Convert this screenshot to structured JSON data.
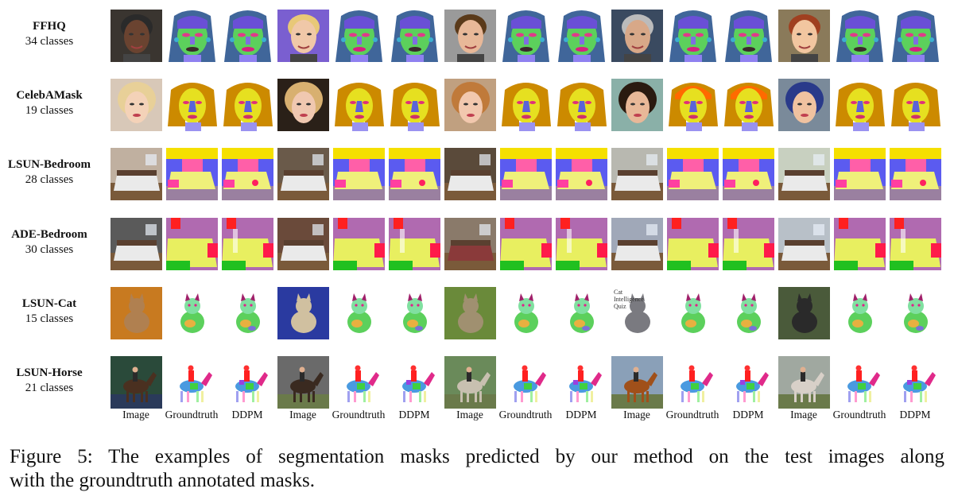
{
  "rows": [
    {
      "name": "FFHQ",
      "classes": "34 classes"
    },
    {
      "name": "CelebAMask",
      "classes": "19 classes"
    },
    {
      "name": "LSUN-Bedroom",
      "classes": "28 classes"
    },
    {
      "name": "ADE-Bedroom",
      "classes": "30 classes"
    },
    {
      "name": "LSUN-Cat",
      "classes": "15 classes"
    },
    {
      "name": "LSUN-Horse",
      "classes": "21 classes"
    }
  ],
  "column_labels": [
    "Image",
    "Groundtruth",
    "DDPM",
    "Image",
    "Groundtruth",
    "DDPM",
    "Image",
    "Groundtruth",
    "DDPM",
    "Image",
    "Groundtruth",
    "DDPM",
    "Image",
    "Groundtruth",
    "DDPM"
  ],
  "inline_texts": {
    "cat_quiz_title": "Cat Intelligence Quiz"
  },
  "caption": {
    "line1": "Figure 5: The examples of segmentation masks predicted by our method on the test images along",
    "line2": "with the groundtruth annotated masks."
  }
}
